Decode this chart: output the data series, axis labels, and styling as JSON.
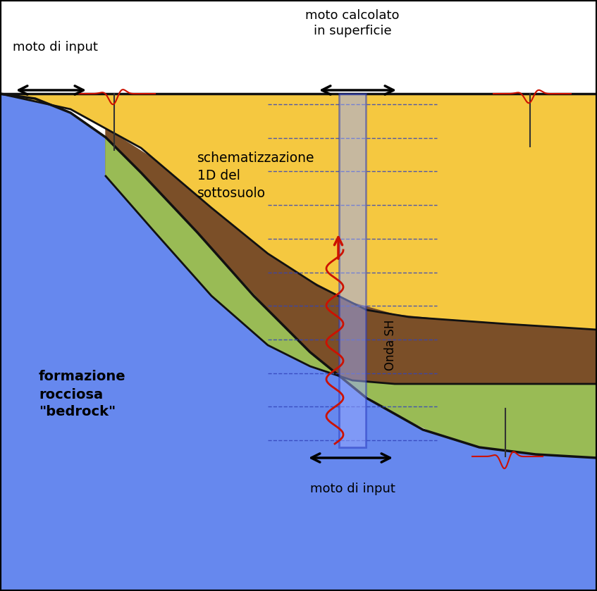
{
  "colors": {
    "blue_bedrock": "#6688EE",
    "yellow_layer": "#F5C840",
    "brown_layer": "#7B4F28",
    "green_layer": "#99BB55",
    "blue_col_edge": "#2233BB",
    "blue_col_face": "#99AAFF",
    "red_wave": "#CC1100",
    "black": "#111111",
    "dark_gray": "#222222",
    "dashed_blue": "#3344BB",
    "background": "#FFFFFF"
  },
  "text": {
    "moto_input_top": "moto di input",
    "moto_calcolato": "moto calcolato\nin superficie",
    "schematizzazione": "schematizzazione\n1D del\nsottosuolo",
    "formazione": "formazione\nrocciosa\n\"bedrock\"",
    "onda_sh": "Onda SH",
    "moto_input_bottom": "moto di input"
  },
  "figsize": [
    8.47,
    8.39
  ],
  "dpi": 100
}
